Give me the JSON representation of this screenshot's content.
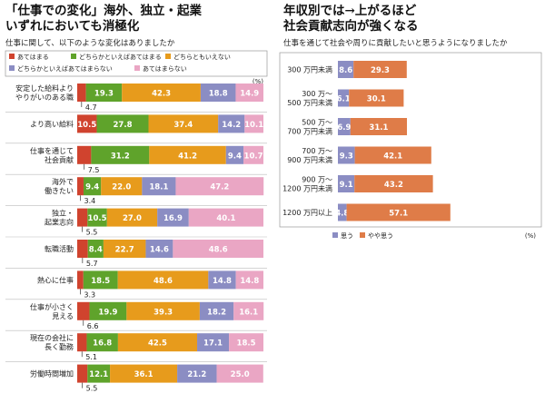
{
  "left_chart": {
    "title": [
      "「仕事での変化」海外、独立・起業",
      "いずれにおいても消極化"
    ],
    "subtitle": "仕事に関して、以下のような変化はありましたか",
    "unit": "(%)",
    "colors": {
      "あてはまる": "#d0432e",
      "どちらかといえばあてはまる": "#5fa32b",
      "どちらともいえない": "#e79b1c",
      "どちらかといえばあてはまらない": "#8b8dc3",
      "あてはまらない": "#eaa6c4"
    }
  },
  "right_chart": {
    "title": [
      "年収別では→上がるほど",
      "社会貢献志向が強くなる"
    ],
    "subtitle": "仕事を通じて社会や周りに貢献したいと思うようになりましたか",
    "unit": "(%)",
    "colors": {
      "思う": "#8b8dc3",
      "やや思う": "#df7c48"
    }
  },
  "chart_data": [
    {
      "type": "bar",
      "orientation": "horizontal",
      "stacked": true,
      "legend": [
        "あてはまる",
        "どちらかといえばあてはまる",
        "どちらともいえない",
        "どちらかといえばあてはまらない",
        "あてはまらない"
      ],
      "legend_placement": "top",
      "categories": [
        [
          "安定した給料より",
          "やりがいのある職"
        ],
        [
          "より高い給料"
        ],
        [
          "仕事を通じて",
          "社会貢献"
        ],
        [
          "海外で",
          "働きたい"
        ],
        [
          "独立・",
          "起業志向"
        ],
        [
          "転職活動"
        ],
        [
          "熱心に仕事"
        ],
        [
          "仕事が小さく",
          "見える"
        ],
        [
          "現在の会社に",
          "長く勤務"
        ],
        [
          "労働時間増加"
        ]
      ],
      "series": [
        {
          "name": "あてはまる",
          "values": [
            4.7,
            10.5,
            7.5,
            3.4,
            5.5,
            5.7,
            3.3,
            6.6,
            5.1,
            5.5
          ]
        },
        {
          "name": "どちらかといえばあてはまる",
          "values": [
            19.3,
            27.8,
            31.2,
            9.4,
            10.5,
            8.4,
            18.5,
            19.9,
            16.8,
            12.1
          ]
        },
        {
          "name": "どちらともいえない",
          "values": [
            42.3,
            37.4,
            41.2,
            22.0,
            27.0,
            22.7,
            48.6,
            39.3,
            42.5,
            36.1
          ]
        },
        {
          "name": "どちらかといえばあてはまらない",
          "values": [
            18.8,
            14.2,
            9.4,
            18.1,
            16.9,
            14.6,
            14.8,
            18.2,
            17.1,
            21.2
          ]
        },
        {
          "name": "あてはまらない",
          "values": [
            14.9,
            10.1,
            10.7,
            47.2,
            40.1,
            48.6,
            14.8,
            16.1,
            18.5,
            25.0
          ]
        }
      ],
      "data_labels": [
        [
          "4.7",
          "19.3",
          "42.3",
          "18.8",
          "14.9"
        ],
        [
          "10.5",
          "27.8",
          "37.4",
          "14.2",
          "10.1"
        ],
        [
          "7.5",
          "31.2",
          "41.2",
          "9.4",
          "10.7"
        ],
        [
          "3.4",
          "9.4",
          "22.0",
          "18.1",
          "47.2"
        ],
        [
          "5.5",
          "10.5",
          "27.0",
          "16.9",
          "40.1"
        ],
        [
          "5.7",
          "8.4",
          "22.7",
          "14.6",
          "48.6"
        ],
        [
          "3.3",
          "18.5",
          "48.6",
          "14.8",
          "14.8"
        ],
        [
          "6.6",
          "19.9",
          "39.3",
          "18.2",
          "16.1"
        ],
        [
          "5.1",
          "16.8",
          "42.5",
          "17.1",
          "18.5"
        ],
        [
          "5.5",
          "12.1",
          "36.1",
          "21.2",
          "25.0"
        ]
      ],
      "xlim": [
        0,
        100
      ],
      "unit": "(%)",
      "grid": false
    },
    {
      "type": "bar",
      "orientation": "horizontal",
      "stacked": true,
      "legend": [
        "思う",
        "やや思う"
      ],
      "legend_placement": "bottom",
      "categories": [
        [
          "300 万円未満"
        ],
        [
          "300 万〜",
          "500 万円未満"
        ],
        [
          "500 万〜",
          "700 万円未満"
        ],
        [
          "700 万〜",
          "900 万円未満"
        ],
        [
          "900 万〜",
          "1200 万円未満"
        ],
        [
          "1200 万円以上"
        ]
      ],
      "series": [
        {
          "name": "思う",
          "values": [
            8.6,
            6.1,
            6.9,
            9.3,
            9.1,
            4.8
          ]
        },
        {
          "name": "やや思う",
          "values": [
            29.3,
            30.1,
            31.1,
            42.1,
            43.2,
            57.1
          ]
        }
      ],
      "data_labels": [
        [
          "8.6",
          "29.3"
        ],
        [
          "6.1",
          "30.1"
        ],
        [
          "6.9",
          "31.1"
        ],
        [
          "9.3",
          "42.1"
        ],
        [
          "9.1",
          "43.2"
        ],
        [
          "4.8",
          "57.1"
        ]
      ],
      "unit": "(%)",
      "grid": false
    }
  ]
}
